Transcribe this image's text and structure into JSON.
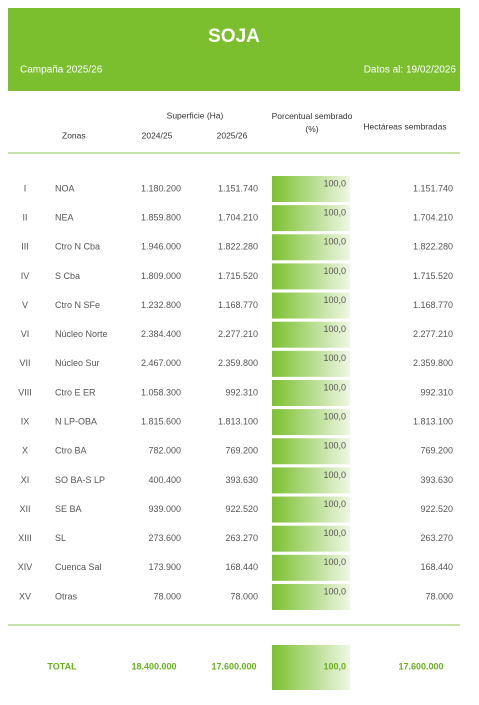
{
  "header": {
    "title": "SOJA",
    "campaign": "Campaña 2025/26",
    "date": "Datos al: 19/02/2026"
  },
  "table": {
    "columns": {
      "zones": "Zonas",
      "surface": "Superficie (Ha)",
      "year1": "2024/25",
      "year2": "2025/26",
      "percent": "Porcentual sembrado (%)",
      "sown": "Hectáreas sembradas"
    },
    "rows": [
      [
        "I",
        "NOA",
        "1.180.200",
        "1.151.740",
        "100,0",
        "1.151.740"
      ],
      [
        "II",
        "NEA",
        "1.859.800",
        "1.704.210",
        "100,0",
        "1.704.210"
      ],
      [
        "III",
        "Ctro N Cba",
        "1.946.000",
        "1.822.280",
        "100,0",
        "1.822.280"
      ],
      [
        "IV",
        "S Cba",
        "1.809.000",
        "1.715.520",
        "100,0",
        "1.715.520"
      ],
      [
        "V",
        "Ctro N SFe",
        "1.232.800",
        "1.168.770",
        "100,0",
        "1.168.770"
      ],
      [
        "VI",
        "Núcleo Norte",
        "2.384.400",
        "2.277.210",
        "100,0",
        "2.277.210"
      ],
      [
        "VII",
        "Núcleo Sur",
        "2.467.000",
        "2.359.800",
        "100,0",
        "2.359.800"
      ],
      [
        "VIII",
        "Ctro E ER",
        "1.058.300",
        "992.310",
        "100,0",
        "992.310"
      ],
      [
        "IX",
        "N LP-OBA",
        "1.815.600",
        "1.813.100",
        "100,0",
        "1.813.100"
      ],
      [
        "X",
        "Ctro BA",
        "782.000",
        "769.200",
        "100,0",
        "769.200"
      ],
      [
        "XI",
        "SO BA-S LP",
        "400.400",
        "393.630",
        "100,0",
        "393.630"
      ],
      [
        "XII",
        "SE BA",
        "939.000",
        "922.520",
        "100,0",
        "922.520"
      ],
      [
        "XIII",
        "SL",
        "273.600",
        "263.270",
        "100,0",
        "263.270"
      ],
      [
        "XIV",
        "Cuenca Sal",
        "173.900",
        "168.440",
        "100,0",
        "168.440"
      ],
      [
        "XV",
        "Otras",
        "78.000",
        "78.000",
        "100,0",
        "78.000"
      ]
    ],
    "total": [
      "TOTAL",
      "18.400.000",
      "17.600.000",
      "100,0",
      "17.600.000"
    ]
  }
}
